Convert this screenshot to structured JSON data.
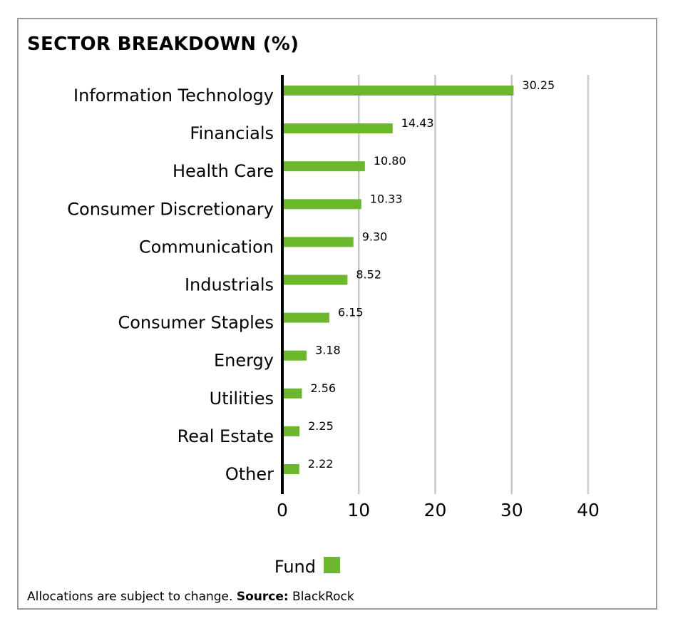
{
  "chart_data": {
    "type": "bar",
    "orientation": "horizontal",
    "title": "SECTOR BREAKDOWN (%)",
    "categories": [
      "Information Technology",
      "Financials",
      "Health Care",
      "Consumer Discretionary",
      "Communication",
      "Industrials",
      "Consumer Staples",
      "Energy",
      "Utilities",
      "Real Estate",
      "Other"
    ],
    "series": [
      {
        "name": "Fund",
        "color": "#6cb82d",
        "values": [
          30.25,
          14.43,
          10.8,
          10.33,
          9.3,
          8.52,
          6.15,
          3.18,
          2.56,
          2.25,
          2.22
        ],
        "labels": [
          "30.25",
          "14.43",
          "10.80",
          "10.33",
          "9.30",
          "8.52",
          "6.15",
          "3.18",
          "2.56",
          "2.25",
          "2.22"
        ]
      }
    ],
    "xlim": [
      0,
      40
    ],
    "xticks": [
      0,
      10,
      20,
      30,
      40
    ],
    "xlabel": "",
    "ylabel": "",
    "grid": "vertical",
    "grid_color": "#c8c8c8",
    "axis_color": "#000000",
    "legend_position": "bottom-center"
  },
  "footnote": {
    "text": "Allocations are subject to change. ",
    "source_label": "Source:",
    "source_value": " BlackRock"
  }
}
